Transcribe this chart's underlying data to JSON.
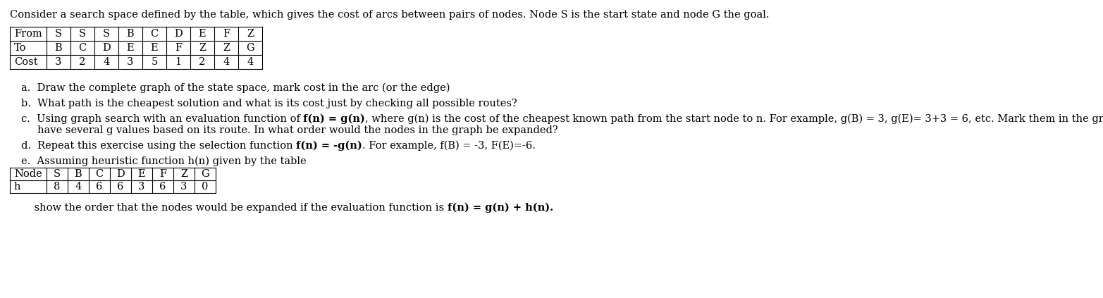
{
  "title": "Consider a search space defined by the table, which gives the cost of arcs between pairs of nodes. Node S is the start state and node G the goal.",
  "table1_rows": [
    "From",
    "To",
    "Cost"
  ],
  "table1_cols": [
    [
      "S",
      "B",
      "3"
    ],
    [
      "S",
      "C",
      "2"
    ],
    [
      "S",
      "D",
      "4"
    ],
    [
      "B",
      "E",
      "3"
    ],
    [
      "C",
      "E",
      "5"
    ],
    [
      "D",
      "F",
      "1"
    ],
    [
      "E",
      "Z",
      "2"
    ],
    [
      "F",
      "Z",
      "4"
    ],
    [
      "Z",
      "G",
      "4"
    ]
  ],
  "qa": "a.  Draw the complete graph of the state space, mark cost in the arc (or the edge)",
  "qb": "b.  What path is the cheapest solution and what is its cost just by checking all possible routes?",
  "qc_pre": "c.  Using graph search with an evaluation function of ",
  "qc_bold": "f(n) = g(n)",
  "qc_post": ", where g(n) is the cost of the cheapest known path from the start node to n. For example, g(B) = 3, g(E)= 3+3 = 6, etc. Mark them in the graph. Some node may",
  "qc_line2": "     have several g values based on its route. In what order would the nodes in the graph be expanded?",
  "qd_pre": "d.  Repeat this exercise using the selection function ",
  "qd_bold": "f(n) = -g(n)",
  "qd_post": ". For example, f(B) = -3, F(E)=-6.",
  "qe": "e.  Assuming heuristic function h(n) given by the table",
  "table2_header": [
    "Node",
    "S",
    "B",
    "C",
    "D",
    "E",
    "F",
    "Z",
    "G"
  ],
  "table2_row": [
    "h",
    "8",
    "4",
    "6",
    "6",
    "3",
    "6",
    "3",
    "0"
  ],
  "footer_pre": "    show the order that the nodes would be expanded if the evaluation function is ",
  "footer_bold": "f(n) = g(n) + h(n).",
  "bg_color": "#ffffff",
  "text_color": "#000000",
  "border_color": "#000000",
  "font_size": 10.5,
  "title_font_size": 10.5
}
